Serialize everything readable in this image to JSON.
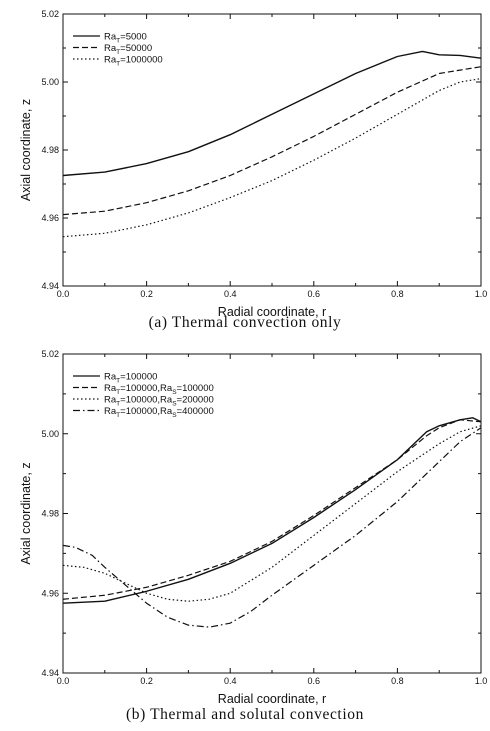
{
  "chart_data": [
    {
      "type": "line",
      "title": "",
      "caption": "(a)  Thermal convection only",
      "xlabel": "Radial coordinate, r",
      "ylabel": "Axial coordinate, z",
      "xlim": [
        0.0,
        1.0
      ],
      "ylim": [
        4.94,
        5.02
      ],
      "xticks": [
        "0.0",
        "0.2",
        "0.4",
        "0.6",
        "0.8",
        "1.0"
      ],
      "yticks": [
        "4.94",
        "4.96",
        "4.98",
        "5.00",
        "5.02"
      ],
      "legend_position": "top-left",
      "series": [
        {
          "name": "Ra_T=5000",
          "label_main": "Ra",
          "label_sub": "T",
          "label_tail": "=5000",
          "style": "solid",
          "x": [
            0.0,
            0.1,
            0.2,
            0.3,
            0.4,
            0.5,
            0.6,
            0.7,
            0.8,
            0.86,
            0.9,
            0.95,
            1.0
          ],
          "y": [
            4.9725,
            4.9735,
            4.976,
            4.9795,
            4.9845,
            4.9905,
            4.9965,
            5.0025,
            5.0075,
            5.009,
            5.008,
            5.0078,
            5.007
          ]
        },
        {
          "name": "Ra_T=50000",
          "label_main": "Ra",
          "label_sub": "T",
          "label_tail": "=50000",
          "style": "dashed",
          "x": [
            0.0,
            0.1,
            0.2,
            0.3,
            0.4,
            0.5,
            0.6,
            0.7,
            0.8,
            0.9,
            0.95,
            1.0
          ],
          "y": [
            4.961,
            4.962,
            4.9645,
            4.968,
            4.9725,
            4.978,
            4.984,
            4.9905,
            4.997,
            5.0025,
            5.0035,
            5.0045
          ]
        },
        {
          "name": "Ra_T=1000000",
          "label_main": "Ra",
          "label_sub": "T",
          "label_tail": "=1000000",
          "style": "dotted",
          "x": [
            0.0,
            0.1,
            0.2,
            0.3,
            0.4,
            0.5,
            0.6,
            0.7,
            0.8,
            0.9,
            0.95,
            1.0
          ],
          "y": [
            4.9545,
            4.9555,
            4.958,
            4.9615,
            4.966,
            4.971,
            4.977,
            4.9835,
            4.9905,
            4.9975,
            5.0,
            5.001
          ]
        }
      ]
    },
    {
      "type": "line",
      "title": "",
      "caption": "(b)  Thermal and solutal convection",
      "xlabel": "Radial coordinate, r",
      "ylabel": "Axial coordinate, z",
      "xlim": [
        0.0,
        1.0
      ],
      "ylim": [
        4.94,
        5.02
      ],
      "xticks": [
        "0.0",
        "0.2",
        "0.4",
        "0.6",
        "0.8",
        "1.0"
      ],
      "yticks": [
        "4.94",
        "4.96",
        "4.98",
        "5.00",
        "5.02"
      ],
      "legend_position": "top-left",
      "series": [
        {
          "name": "Ra_T=100000",
          "label_main": "Ra",
          "label_sub": "T",
          "label_tail": "=100000",
          "style": "solid",
          "x": [
            0.0,
            0.1,
            0.2,
            0.3,
            0.4,
            0.5,
            0.6,
            0.7,
            0.8,
            0.87,
            0.9,
            0.95,
            0.98,
            1.0
          ],
          "y": [
            4.9575,
            4.958,
            4.9605,
            4.9635,
            4.9675,
            4.9725,
            4.979,
            4.986,
            4.9935,
            5.0005,
            5.002,
            5.0035,
            5.004,
            5.003
          ]
        },
        {
          "name": "Ra_T=100000,Ra_S=100000",
          "label_main": "Ra",
          "label_sub": "T",
          "label_tail": "=100000,Ra",
          "label_sub2": "S",
          "label_tail2": "=100000",
          "style": "dashed",
          "x": [
            0.0,
            0.1,
            0.2,
            0.3,
            0.4,
            0.5,
            0.6,
            0.7,
            0.8,
            0.87,
            0.9,
            0.95,
            1.0
          ],
          "y": [
            4.9585,
            4.9595,
            4.9615,
            4.9645,
            4.968,
            4.973,
            4.9795,
            4.9865,
            4.9935,
            4.9995,
            5.0015,
            5.0035,
            5.003
          ]
        },
        {
          "name": "Ra_T=100000,Ra_S=200000",
          "label_main": "Ra",
          "label_sub": "T",
          "label_tail": "=100000,Ra",
          "label_sub2": "S",
          "label_tail2": "=200000",
          "style": "dotted",
          "x": [
            0.0,
            0.05,
            0.1,
            0.15,
            0.2,
            0.25,
            0.3,
            0.35,
            0.4,
            0.5,
            0.6,
            0.7,
            0.8,
            0.9,
            0.95,
            1.0
          ],
          "y": [
            4.967,
            4.9665,
            4.965,
            4.9625,
            4.96,
            4.9585,
            4.958,
            4.9585,
            4.96,
            4.9665,
            4.9745,
            4.9825,
            4.9905,
            4.9975,
            5.0005,
            5.002
          ]
        },
        {
          "name": "Ra_T=100000,Ra_S=400000",
          "label_main": "Ra",
          "label_sub": "T",
          "label_tail": "=100000,Ra",
          "label_sub2": "S",
          "label_tail2": "=400000",
          "style": "dashdot",
          "x": [
            0.0,
            0.03,
            0.07,
            0.1,
            0.15,
            0.2,
            0.25,
            0.3,
            0.35,
            0.4,
            0.45,
            0.5,
            0.6,
            0.7,
            0.8,
            0.9,
            0.95,
            1.0
          ],
          "y": [
            4.972,
            4.9715,
            4.9695,
            4.9665,
            4.962,
            4.9575,
            4.954,
            4.952,
            4.9515,
            4.9525,
            4.9555,
            4.9595,
            4.967,
            4.9745,
            4.983,
            4.993,
            4.998,
            5.0015
          ]
        }
      ]
    }
  ]
}
